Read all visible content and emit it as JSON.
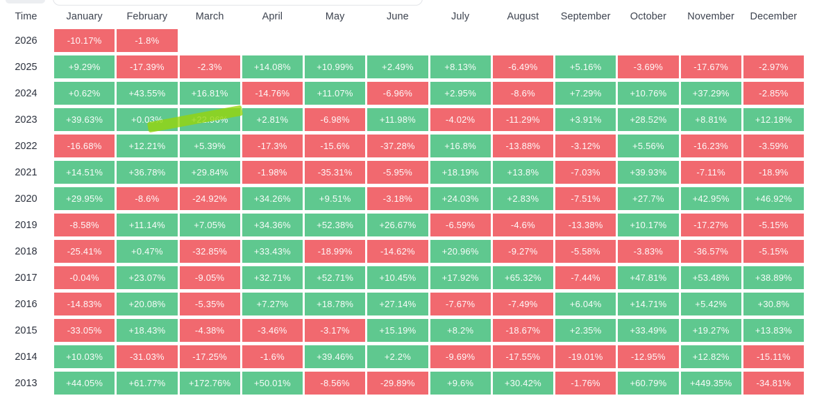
{
  "table": {
    "time_header": "Time",
    "months": [
      "January",
      "February",
      "March",
      "April",
      "May",
      "June",
      "July",
      "August",
      "September",
      "October",
      "November",
      "December"
    ],
    "rows": [
      {
        "year": "2026",
        "values": [
          "-10.17%",
          "-1.8%",
          "",
          "",
          "",
          "",
          "",
          "",
          "",
          "",
          "",
          ""
        ]
      },
      {
        "year": "2025",
        "values": [
          "+9.29%",
          "-17.39%",
          "-2.3%",
          "+14.08%",
          "+10.99%",
          "+2.49%",
          "+8.13%",
          "-6.49%",
          "+5.16%",
          "-3.69%",
          "-17.67%",
          "-2.97%"
        ]
      },
      {
        "year": "2024",
        "values": [
          "+0.62%",
          "+43.55%",
          "+16.81%",
          "-14.76%",
          "+11.07%",
          "-6.96%",
          "+2.95%",
          "-8.6%",
          "+7.29%",
          "+10.76%",
          "+37.29%",
          "-2.85%"
        ]
      },
      {
        "year": "2023",
        "values": [
          "+39.63%",
          "+0.03%",
          "+22.96%",
          "+2.81%",
          "-6.98%",
          "+11.98%",
          "-4.02%",
          "-11.29%",
          "+3.91%",
          "+28.52%",
          "+8.81%",
          "+12.18%"
        ]
      },
      {
        "year": "2022",
        "values": [
          "-16.68%",
          "+12.21%",
          "+5.39%",
          "-17.3%",
          "-15.6%",
          "-37.28%",
          "+16.8%",
          "-13.88%",
          "-3.12%",
          "+5.56%",
          "-16.23%",
          "-3.59%"
        ]
      },
      {
        "year": "2021",
        "values": [
          "+14.51%",
          "+36.78%",
          "+29.84%",
          "-1.98%",
          "-35.31%",
          "-5.95%",
          "+18.19%",
          "+13.8%",
          "-7.03%",
          "+39.93%",
          "-7.11%",
          "-18.9%"
        ]
      },
      {
        "year": "2020",
        "values": [
          "+29.95%",
          "-8.6%",
          "-24.92%",
          "+34.26%",
          "+9.51%",
          "-3.18%",
          "+24.03%",
          "+2.83%",
          "-7.51%",
          "+27.7%",
          "+42.95%",
          "+46.92%"
        ]
      },
      {
        "year": "2019",
        "values": [
          "-8.58%",
          "+11.14%",
          "+7.05%",
          "+34.36%",
          "+52.38%",
          "+26.67%",
          "-6.59%",
          "-4.6%",
          "-13.38%",
          "+10.17%",
          "-17.27%",
          "-5.15%"
        ]
      },
      {
        "year": "2018",
        "values": [
          "-25.41%",
          "+0.47%",
          "-32.85%",
          "+33.43%",
          "-18.99%",
          "-14.62%",
          "+20.96%",
          "-9.27%",
          "-5.58%",
          "-3.83%",
          "-36.57%",
          "-5.15%"
        ]
      },
      {
        "year": "2017",
        "values": [
          "-0.04%",
          "+23.07%",
          "-9.05%",
          "+32.71%",
          "+52.71%",
          "+10.45%",
          "+17.92%",
          "+65.32%",
          "-7.44%",
          "+47.81%",
          "+53.48%",
          "+38.89%"
        ]
      },
      {
        "year": "2016",
        "values": [
          "-14.83%",
          "+20.08%",
          "-5.35%",
          "+7.27%",
          "+18.78%",
          "+27.14%",
          "-7.67%",
          "-7.49%",
          "+6.04%",
          "+14.71%",
          "+5.42%",
          "+30.8%"
        ]
      },
      {
        "year": "2015",
        "values": [
          "-33.05%",
          "+18.43%",
          "-4.38%",
          "-3.46%",
          "-3.17%",
          "+15.19%",
          "+8.2%",
          "-18.67%",
          "+2.35%",
          "+33.49%",
          "+19.27%",
          "+13.83%"
        ]
      },
      {
        "year": "2014",
        "values": [
          "+10.03%",
          "-31.03%",
          "-17.25%",
          "-1.6%",
          "+39.46%",
          "+2.2%",
          "-9.69%",
          "-17.55%",
          "-19.01%",
          "-12.95%",
          "+12.82%",
          "-15.11%"
        ]
      },
      {
        "year": "2013",
        "values": [
          "+44.05%",
          "+61.77%",
          "+172.76%",
          "+50.01%",
          "-8.56%",
          "-29.89%",
          "+9.6%",
          "+30.42%",
          "-1.76%",
          "+60.79%",
          "+449.35%",
          "-34.81%"
        ]
      }
    ]
  },
  "annotation": {
    "type": "marker-highlight",
    "cell": "2023 March",
    "value": "+22.96%"
  },
  "colors": {
    "positive": "#5fc88f",
    "negative": "#f1696f",
    "marker": "rgba(150,213,10,0.78)"
  }
}
